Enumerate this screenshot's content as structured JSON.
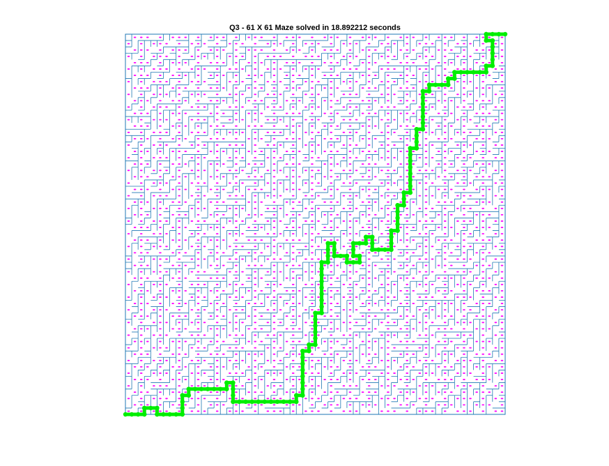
{
  "chart_data": {
    "type": "scatter",
    "title": "Q3 - 61 X 61 Maze solved in 18.892212 seconds",
    "xlabel": "",
    "ylabel": "",
    "grid_size": [
      61,
      61
    ],
    "xlim": [
      1,
      61
    ],
    "ylim": [
      1,
      61
    ],
    "axes_visible": false,
    "grid": false,
    "legend": "none",
    "colors": {
      "walls": "#1f77b4",
      "cells": "#ff00ff",
      "path": "#00ee00",
      "background": "#ffffff"
    },
    "series": [
      {
        "type": "maze-walls"
      },
      {
        "type": "cell-markers"
      },
      {
        "type": "solution-path",
        "start": [
          1,
          1
        ],
        "end": [
          61,
          61
        ],
        "waypoints": [
          [
            1,
            1
          ],
          [
            4,
            1
          ],
          [
            4,
            2
          ],
          [
            6,
            2
          ],
          [
            6,
            1
          ],
          [
            10,
            1
          ],
          [
            10,
            4
          ],
          [
            11,
            4
          ],
          [
            11,
            5
          ],
          [
            17,
            5
          ],
          [
            17,
            6
          ],
          [
            18,
            6
          ],
          [
            18,
            3
          ],
          [
            28,
            3
          ],
          [
            28,
            4
          ],
          [
            29,
            4
          ],
          [
            29,
            11
          ],
          [
            30,
            11
          ],
          [
            30,
            12
          ],
          [
            31,
            12
          ],
          [
            31,
            17
          ],
          [
            32,
            17
          ],
          [
            32,
            25
          ],
          [
            33,
            25
          ],
          [
            33,
            28
          ],
          [
            34,
            28
          ],
          [
            34,
            26
          ],
          [
            36,
            26
          ],
          [
            36,
            25
          ],
          [
            38,
            25
          ],
          [
            38,
            26
          ],
          [
            37,
            26
          ],
          [
            37,
            28
          ],
          [
            39,
            28
          ],
          [
            39,
            29
          ],
          [
            40,
            29
          ],
          [
            40,
            27
          ],
          [
            43,
            27
          ],
          [
            43,
            30
          ],
          [
            44,
            30
          ],
          [
            44,
            34
          ],
          [
            45,
            34
          ],
          [
            45,
            36
          ],
          [
            46,
            36
          ],
          [
            46,
            43
          ],
          [
            47,
            43
          ],
          [
            47,
            46
          ],
          [
            48,
            46
          ],
          [
            48,
            52
          ],
          [
            49,
            52
          ],
          [
            49,
            53
          ],
          [
            52,
            53
          ],
          [
            52,
            54
          ],
          [
            53,
            54
          ],
          [
            53,
            55
          ],
          [
            58,
            55
          ],
          [
            58,
            56
          ],
          [
            59,
            56
          ],
          [
            59,
            60
          ],
          [
            58,
            60
          ],
          [
            58,
            61
          ],
          [
            61,
            61
          ]
        ]
      }
    ]
  }
}
